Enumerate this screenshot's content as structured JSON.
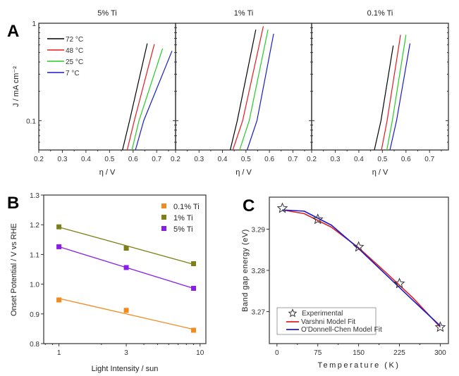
{
  "panel_labels": [
    "A",
    "B",
    "C"
  ],
  "chart_data": [
    {
      "type": "line",
      "panel": "A",
      "subplots": [
        {
          "title": "5% Ti",
          "series": [
            {
              "name": "72 °C",
              "color": "#000000",
              "x": [
                0.555,
                0.585,
                0.66
              ],
              "y": [
                0.05,
                0.1,
                0.62
              ]
            },
            {
              "name": "48 °C",
              "color": "#e8191e",
              "x": [
                0.575,
                0.605,
                0.69
              ],
              "y": [
                0.05,
                0.1,
                0.61
              ]
            },
            {
              "name": "25 °C",
              "color": "#22cc22",
              "x": [
                0.595,
                0.625,
                0.725
              ],
              "y": [
                0.05,
                0.1,
                0.55
              ]
            },
            {
              "name": "7 °C",
              "color": "#1a1acc",
              "x": [
                0.61,
                0.645,
                0.765
              ],
              "y": [
                0.05,
                0.1,
                0.52
              ]
            }
          ]
        },
        {
          "title": "1% Ti",
          "series": [
            {
              "name": "72 °C",
              "color": "#000000",
              "x": [
                0.433,
                0.463,
                0.542
              ],
              "y": [
                0.05,
                0.1,
                0.86
              ]
            },
            {
              "name": "48 °C",
              "color": "#e8191e",
              "x": [
                0.444,
                0.486,
                0.574
              ],
              "y": [
                0.05,
                0.1,
                0.93
              ]
            },
            {
              "name": "25 °C",
              "color": "#22cc22",
              "x": [
                0.473,
                0.514,
                0.594
              ],
              "y": [
                0.05,
                0.1,
                0.86
              ]
            },
            {
              "name": "7 °C",
              "color": "#1a1acc",
              "x": [
                0.505,
                0.547,
                0.618
              ],
              "y": [
                0.05,
                0.1,
                0.78
              ]
            }
          ]
        },
        {
          "title": "0.1% Ti",
          "series": [
            {
              "name": "72 °C",
              "color": "#000000",
              "x": [
                0.466,
                0.494,
                0.546
              ],
              "y": [
                0.05,
                0.1,
                0.59
              ]
            },
            {
              "name": "48 °C",
              "color": "#e8191e",
              "x": [
                0.496,
                0.52,
                0.577
              ],
              "y": [
                0.05,
                0.1,
                0.76
              ]
            },
            {
              "name": "25 °C",
              "color": "#22cc22",
              "x": [
                0.519,
                0.542,
                0.6
              ],
              "y": [
                0.05,
                0.1,
                0.76
              ]
            },
            {
              "name": "7 °C",
              "color": "#1a1acc",
              "x": [
                0.532,
                0.56,
                0.617
              ],
              "y": [
                0.05,
                0.1,
                0.62
              ]
            }
          ]
        }
      ],
      "xlabel": "η / V",
      "ylabel": "J / mA cm⁻²",
      "xlim": [
        0.2,
        0.78
      ],
      "ylim": [
        0.05,
        1
      ],
      "yscale": "log",
      "xticks": [
        "0.2",
        "0.3",
        "0.4",
        "0.5",
        "0.6",
        "0.7"
      ],
      "yticks": [
        "0.1",
        "1"
      ],
      "legend": "top-left",
      "legend_entries": [
        "72 °C",
        "48 °C",
        "25 °C",
        "7 °C"
      ]
    },
    {
      "type": "scatter",
      "panel": "B",
      "xlabel": "Light Intensity / sun",
      "ylabel": "Onset Potential / V vs RHE",
      "xscale": "log",
      "xlim": [
        0.78,
        11
      ],
      "ylim": [
        0.8,
        1.3
      ],
      "xticks": [
        "1",
        "3",
        "10"
      ],
      "yticks": [
        "0.8",
        "0.9",
        "1.0",
        "1.1",
        "1.2",
        "1.3"
      ],
      "legend": "top-right",
      "x": [
        1,
        3,
        9
      ],
      "series": [
        {
          "name": "0.1% Ti",
          "color": "#f28a1e",
          "values": [
            0.947,
            0.912,
            0.845
          ],
          "fit": [
            0.952,
            0.848
          ]
        },
        {
          "name": "1% Ti",
          "color": "#7f7f1a",
          "values": [
            1.193,
            1.121,
            1.069
          ],
          "fit": [
            1.192,
            1.067
          ]
        },
        {
          "name": "5% Ti",
          "color": "#8a1ee8",
          "values": [
            1.126,
            1.056,
            0.986
          ],
          "fit": [
            1.126,
            0.986
          ]
        }
      ]
    },
    {
      "type": "line",
      "panel": "C",
      "xlabel": "Temperature  (K)",
      "ylabel": "Band  gap  energy  (eV)",
      "xlim": [
        -14,
        315
      ],
      "ylim": [
        3.2622,
        3.2978
      ],
      "xticks": [
        "0",
        "75",
        "150",
        "225",
        "300"
      ],
      "yticks": [
        "3.27",
        "3.28",
        "3.29"
      ],
      "legend": "bottom-left",
      "experimental": {
        "name": "Experimental",
        "x": [
          10,
          75,
          150,
          225,
          300
        ],
        "y": [
          3.2951,
          3.2924,
          3.2857,
          3.2768,
          3.2662
        ]
      },
      "fits": [
        {
          "name": "Varshni Model Fit",
          "color": "#e02020",
          "x": [
            10,
            50,
            100,
            150,
            200,
            250,
            300
          ],
          "y": [
            3.2947,
            3.2938,
            3.2905,
            3.2855,
            3.2795,
            3.2733,
            3.2662
          ]
        },
        {
          "name": "O'Donnell-Chen Model Fit",
          "color": "#1a1acc",
          "x": [
            10,
            50,
            100,
            150,
            200,
            250,
            300
          ],
          "y": [
            3.2947,
            3.2944,
            3.291,
            3.2853,
            3.279,
            3.2727,
            3.2665
          ]
        }
      ]
    }
  ]
}
